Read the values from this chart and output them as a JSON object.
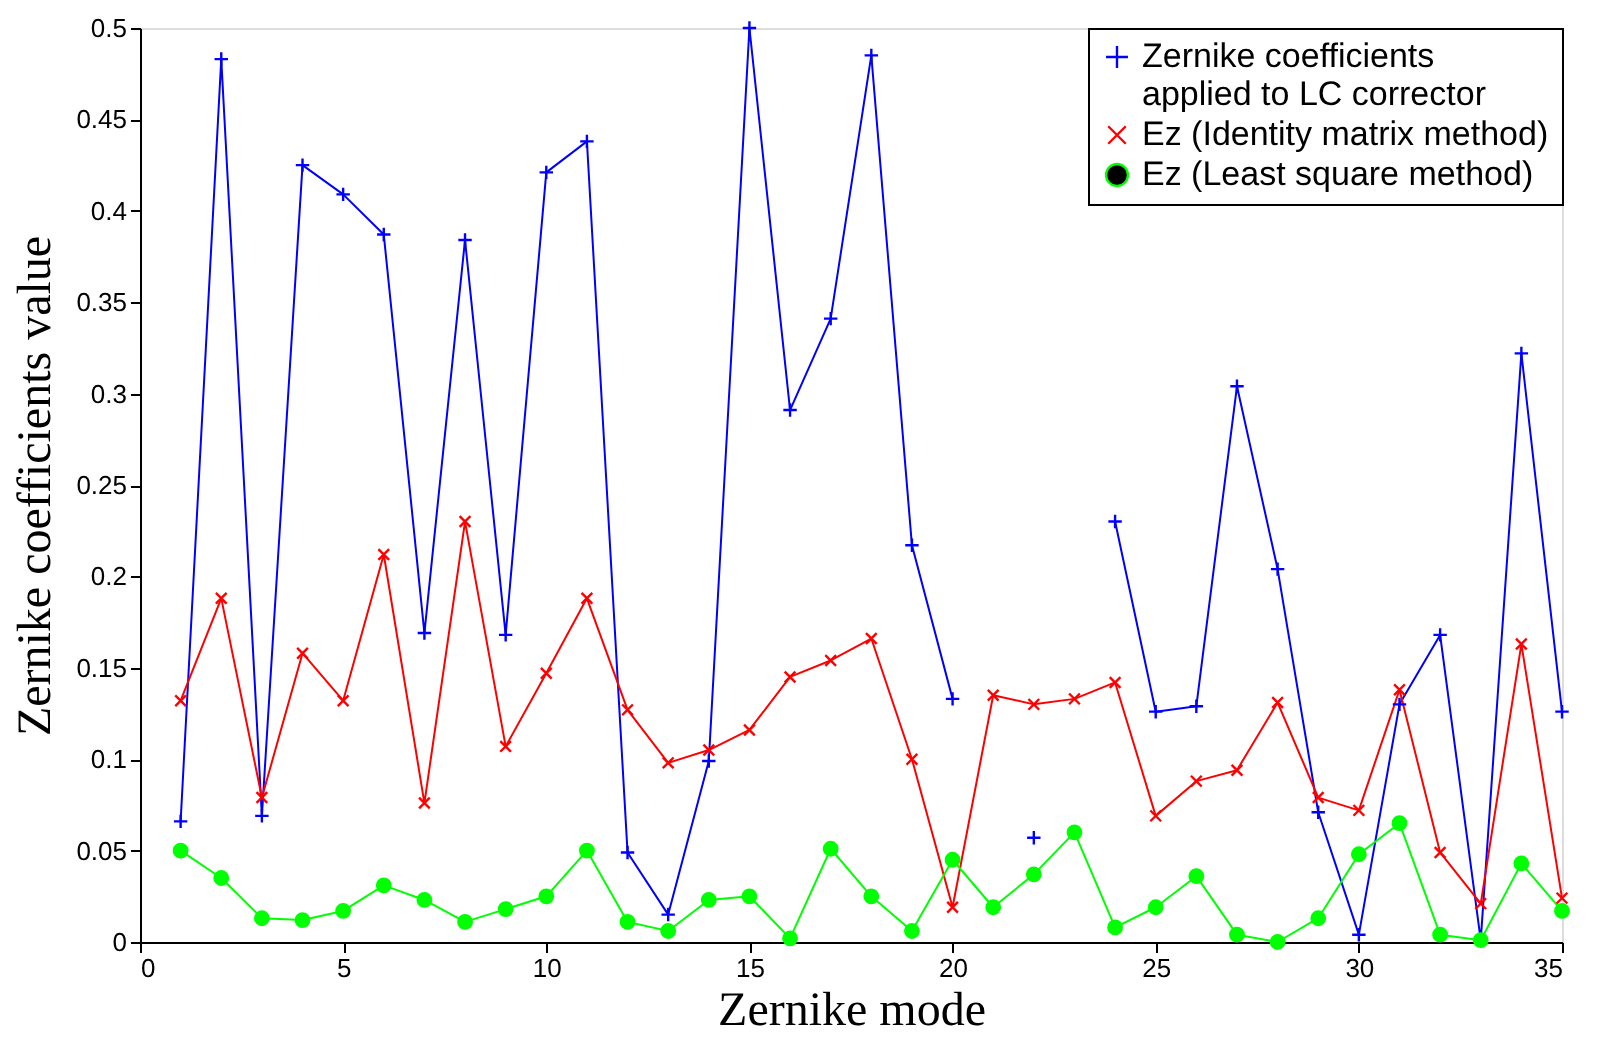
{
  "chart_data": {
    "type": "line",
    "xlabel": "Zernike mode",
    "ylabel": "Zernike coefficients value",
    "x": [
      1,
      2,
      3,
      4,
      5,
      6,
      7,
      8,
      9,
      10,
      11,
      12,
      13,
      14,
      15,
      16,
      17,
      18,
      19,
      20,
      21,
      22,
      23,
      24,
      25,
      26,
      27,
      28,
      29,
      30,
      31,
      32,
      33,
      34,
      35
    ],
    "xlim": [
      0,
      35
    ],
    "xticks": [
      0,
      5,
      10,
      15,
      20,
      25,
      30,
      35
    ],
    "ylim": [
      0,
      0.5
    ],
    "yticks": [
      0,
      0.05,
      0.1,
      0.15,
      0.2,
      0.25,
      0.3,
      0.35,
      0.4,
      0.45,
      0.5
    ],
    "grid": false,
    "legend": "top right",
    "series": [
      {
        "name": "Zernike coefficients\n applied to LC corrector",
        "color": "#0000ff",
        "marker": "cross",
        "values": [
          0.066,
          0.483,
          0.069,
          0.425,
          0.409,
          0.387,
          0.169,
          0.384,
          0.168,
          0.421,
          0.438,
          0.049,
          0.015,
          0.099,
          0.5,
          0.291,
          0.341,
          0.485,
          0.217,
          0.133,
          null,
          0.057,
          null,
          0.23,
          0.126,
          0.129,
          0.304,
          0.204,
          0.071,
          0.004,
          0.13,
          0.168,
          0.001,
          0.322,
          0.126
        ]
      },
      {
        "name": "Ez (Identity matrix method)",
        "color": "#ff0000",
        "marker": "x",
        "values": [
          0.132,
          0.188,
          0.079,
          0.158,
          0.132,
          0.212,
          0.076,
          0.23,
          0.107,
          0.147,
          0.188,
          0.127,
          0.098,
          0.105,
          0.116,
          0.145,
          0.154,
          0.166,
          0.1,
          0.019,
          0.135,
          0.13,
          0.133,
          0.142,
          0.069,
          0.088,
          0.094,
          0.131,
          0.079,
          0.072,
          0.138,
          0.049,
          0.021,
          0.163,
          0.024
        ]
      },
      {
        "name": "Ez (Least square method)",
        "color": "#00ff00",
        "marker": "circle",
        "values": [
          0.05,
          0.035,
          0.013,
          0.012,
          0.017,
          0.031,
          0.023,
          0.011,
          0.018,
          0.025,
          0.05,
          0.011,
          0.006,
          0.023,
          0.025,
          0.002,
          0.051,
          0.025,
          0.006,
          0.045,
          0.019,
          0.037,
          0.06,
          0.008,
          0.019,
          0.036,
          0.004,
          0.0,
          0.013,
          0.048,
          0.065,
          0.004,
          0.001,
          0.043,
          0.017
        ]
      }
    ]
  }
}
